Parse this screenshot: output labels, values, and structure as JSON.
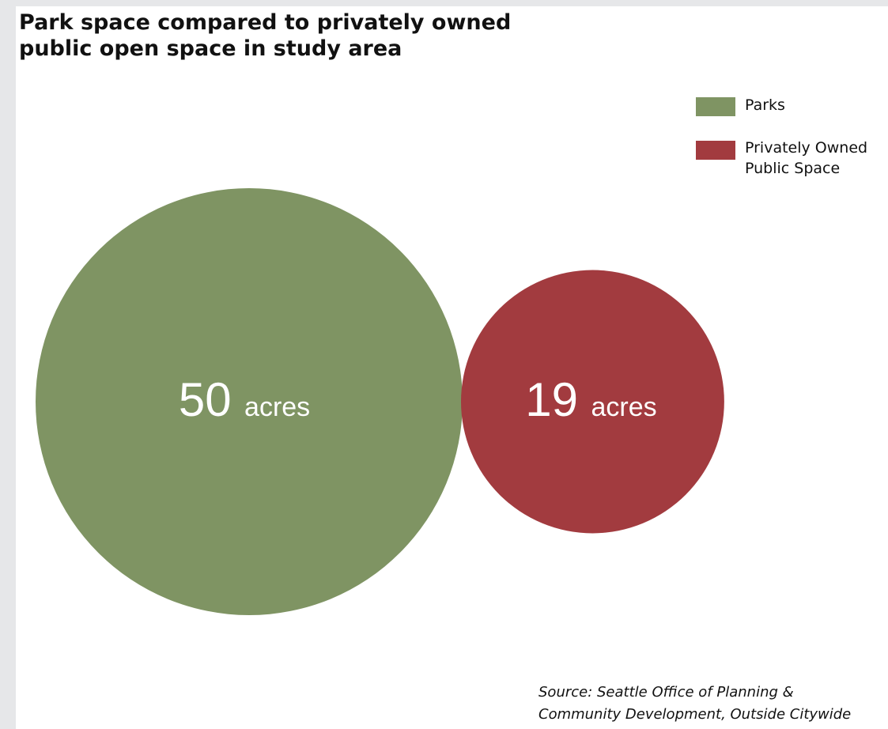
{
  "chart_data": {
    "type": "bubble",
    "title_lines": [
      "Park space compared to privately owned",
      "public open space in study area"
    ],
    "series": [
      {
        "name": "Parks",
        "value": 50,
        "value_text": "50",
        "unit": "acres",
        "color": "#7f9463"
      },
      {
        "name": "Privately Owned Public Space",
        "name_lines": [
          "Privately Owned",
          "Public Space"
        ],
        "value": 19,
        "value_text": "19",
        "unit": "acres",
        "color": "#a23b3f"
      }
    ],
    "legend_position": "top-right",
    "source_lines": [
      "Source: Seattle Office of Planning &",
      "Community Development, Outside Citywide"
    ]
  }
}
